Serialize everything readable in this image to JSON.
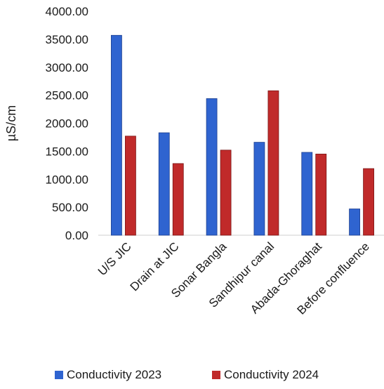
{
  "chart_data": {
    "type": "bar",
    "ylabel": "µS/cm",
    "xlabel": "",
    "ylim": [
      0,
      4000
    ],
    "yticks": [
      "0.00",
      "500.00",
      "1000.00",
      "1500.00",
      "2000.00",
      "2500.00",
      "3000.00",
      "3500.00",
      "4000.00"
    ],
    "categories": [
      "U/S JIC",
      "Drain at JIC",
      "Sonar Bangla",
      "Sandhipur canal",
      "Abada-Ghoraghat",
      "Before confluence"
    ],
    "series": [
      {
        "name": "Conductivity 2023",
        "color": "#2f64d0",
        "values": [
          3570,
          1830,
          2440,
          1660,
          1480,
          470
        ]
      },
      {
        "name": "Conductivity 2024",
        "color": "#c02a2a",
        "values": [
          1770,
          1280,
          1520,
          2580,
          1450,
          1190
        ]
      }
    ],
    "grid": false,
    "legend_position": "bottom"
  }
}
